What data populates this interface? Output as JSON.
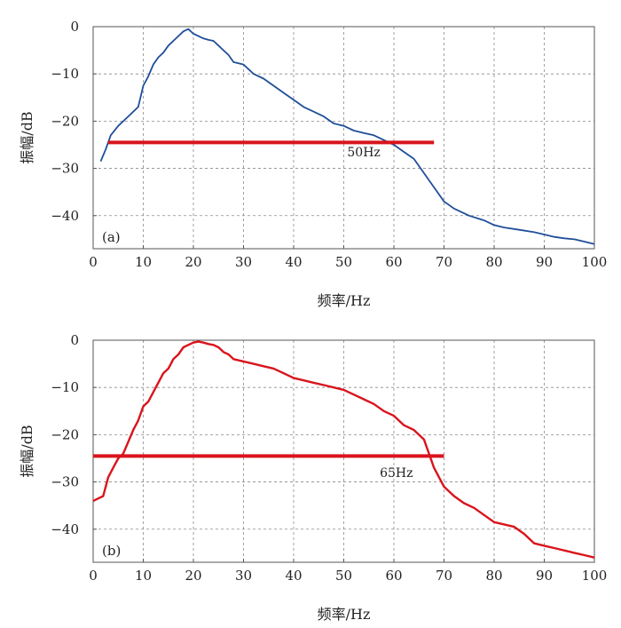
{
  "chart_data": [
    {
      "type": "line",
      "panel_label": "(a)",
      "xlabel": "频率/Hz",
      "ylabel": "振幅/dB",
      "xlim": [
        0,
        100
      ],
      "ylim": [
        -47,
        0
      ],
      "xticks": [
        "0",
        "10",
        "20",
        "30",
        "40",
        "50",
        "60",
        "70",
        "80",
        "90",
        "100"
      ],
      "yticks": [
        "0",
        "-10",
        "-20",
        "-30",
        "-40"
      ],
      "grid": true,
      "series_color": "#1f4e9a",
      "x": [
        1.5,
        2.5,
        3.5,
        5,
        7,
        9,
        10,
        11,
        12,
        13,
        14,
        15,
        16,
        17,
        18,
        19,
        20,
        21,
        22,
        23,
        24,
        25,
        26,
        27,
        28,
        30,
        32,
        34,
        36,
        38,
        40,
        42,
        44,
        46,
        48,
        50,
        52,
        54,
        56,
        58,
        60,
        62,
        64,
        66,
        68,
        70,
        72,
        75,
        78,
        80,
        82,
        85,
        88,
        90,
        92,
        94,
        96,
        98,
        100
      ],
      "y": [
        -28.5,
        -26,
        -23,
        -21,
        -19,
        -17,
        -12.5,
        -10.5,
        -8,
        -6.5,
        -5.5,
        -4,
        -3,
        -2,
        -1,
        -0.5,
        -1.5,
        -2,
        -2.5,
        -2.8,
        -3,
        -4,
        -5,
        -6,
        -7.5,
        -8,
        -10,
        -11,
        -12.5,
        -14,
        -15.5,
        -17,
        -18,
        -19,
        -20.5,
        -21,
        -22,
        -22.5,
        -23,
        -24,
        -25,
        -26.5,
        -28,
        -31,
        -34,
        -37,
        -38.5,
        -40,
        -41,
        -42,
        -42.5,
        -43,
        -43.5,
        -44,
        -44.5,
        -44.8,
        -45,
        -45.5,
        -46
      ],
      "threshold": {
        "y": -24.5,
        "x_start": 3,
        "x_end": 68
      },
      "threshold_color": "#d9141c",
      "annotation": {
        "text": "50Hz",
        "x": 54,
        "y": -26.5
      }
    },
    {
      "type": "line",
      "panel_label": "(b)",
      "xlabel": "频率/Hz",
      "ylabel": "振幅/dB",
      "xlim": [
        0,
        100
      ],
      "ylim": [
        -47,
        0
      ],
      "xticks": [
        "0",
        "10",
        "20",
        "30",
        "40",
        "50",
        "60",
        "70",
        "80",
        "90",
        "100"
      ],
      "yticks": [
        "0",
        "-10",
        "-20",
        "-30",
        "-40"
      ],
      "grid": true,
      "series_color": "#d9141c",
      "x": [
        0,
        1,
        2,
        3,
        4,
        5,
        6,
        7,
        8,
        9,
        10,
        11,
        12,
        13,
        14,
        15,
        16,
        17,
        18,
        19,
        20,
        21,
        22,
        23,
        24,
        25,
        26,
        27,
        28,
        30,
        32,
        34,
        36,
        38,
        40,
        42,
        44,
        46,
        48,
        50,
        52,
        54,
        56,
        58,
        60,
        62,
        64,
        66,
        68,
        70,
        72,
        74,
        76,
        78,
        80,
        82,
        84,
        86,
        88,
        90,
        92,
        94,
        96,
        98,
        100
      ],
      "y": [
        -34,
        -33.5,
        -33,
        -29,
        -27,
        -25,
        -24,
        -21.5,
        -19,
        -17,
        -14,
        -13,
        -11,
        -9,
        -7,
        -6,
        -4,
        -3,
        -1.5,
        -1,
        -0.5,
        -0.3,
        -0.5,
        -0.8,
        -1,
        -1.5,
        -2.5,
        -3,
        -4,
        -4.5,
        -5,
        -5.5,
        -6,
        -7,
        -8,
        -8.5,
        -9,
        -9.5,
        -10,
        -10.5,
        -11.5,
        -12.5,
        -13.5,
        -15,
        -16,
        -18,
        -19,
        -21,
        -27,
        -31,
        -33,
        -34.5,
        -35.5,
        -37,
        -38.5,
        -39,
        -39.5,
        -41,
        -43,
        -43.5,
        -44,
        -44.5,
        -45,
        -45.5,
        -46
      ],
      "threshold": {
        "y": -24.5,
        "x_start": 0,
        "x_end": 70
      },
      "threshold_color": "#d9141c",
      "annotation": {
        "text": "65Hz",
        "x": 60.5,
        "y": -28
      }
    }
  ]
}
